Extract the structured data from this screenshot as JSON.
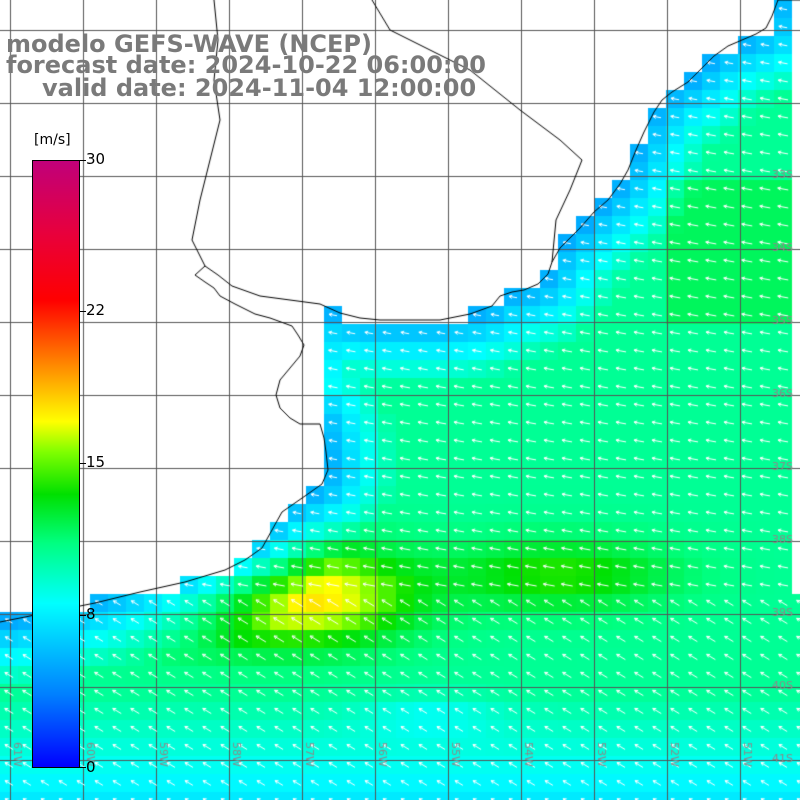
{
  "title": {
    "line1": "modelo GEFS-WAVE (NCEP)",
    "line2": "forecast date: 2024-10-22 06:00:00",
    "line3": "valid date: 2024-11-04 12:00:00"
  },
  "colorbar": {
    "unit": "[m/s]",
    "ticks": [
      "30",
      "22",
      "15",
      "8",
      "0"
    ]
  },
  "lat_labels": [
    "33S",
    "34S",
    "35S",
    "36S",
    "37S",
    "38S",
    "39S",
    "40S",
    "41S"
  ],
  "lon_labels": [
    "61W",
    "60W",
    "59W",
    "58W",
    "57W",
    "56W",
    "55W",
    "54W",
    "53W",
    "52W",
    "51W"
  ],
  "colors": {
    "coast": "#000000",
    "grid": "#555555",
    "arrow": "#ffffff",
    "title": "#7a7a7a"
  }
}
